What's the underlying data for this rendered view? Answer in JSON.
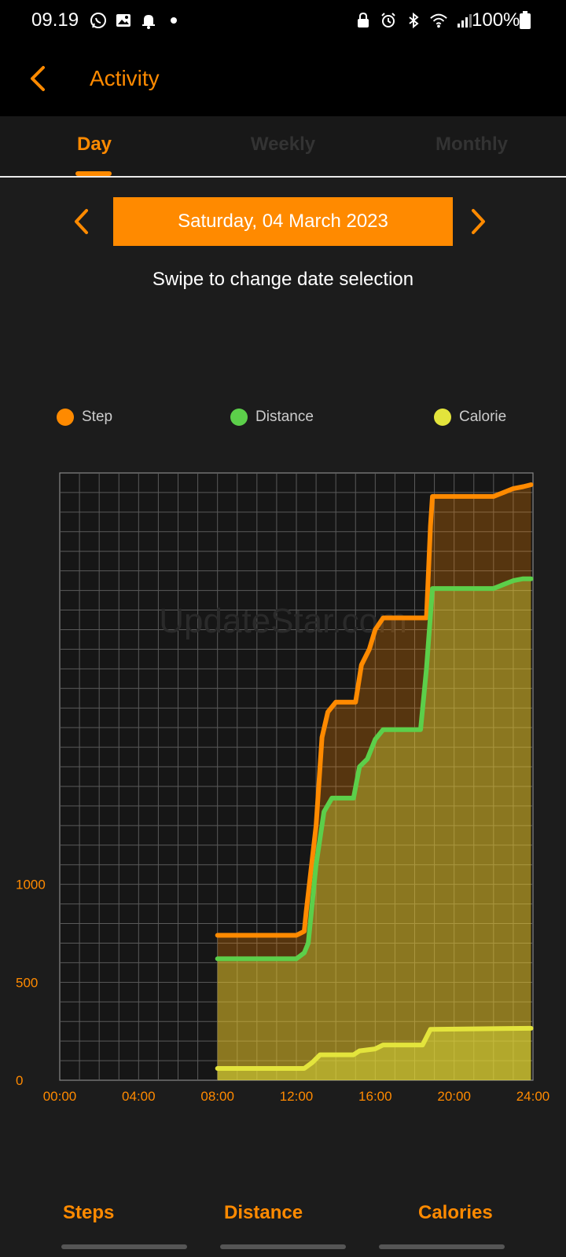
{
  "status_bar": {
    "time": "09.19",
    "battery": "100%",
    "icons_left": [
      "whatsapp-icon",
      "gallery-icon",
      "bell-icon",
      "dot-icon"
    ],
    "icons_right": [
      "lock-icon",
      "alarm-icon",
      "bluetooth-icon",
      "wifi-icon",
      "signal-icon",
      "battery-icon"
    ]
  },
  "app_bar": {
    "title": "Activity"
  },
  "tabs": [
    {
      "label": "Day",
      "selected": true
    },
    {
      "label": "Weekly",
      "selected": false
    },
    {
      "label": "Monthly",
      "selected": false
    }
  ],
  "date_selector": {
    "date": "Saturday, 04 March 2023"
  },
  "swipe_hint": "Swipe to change date selection",
  "colors": {
    "accent": "#ff8a00",
    "step": "#ff8a00",
    "distance": "#5ccf4a",
    "calorie": "#e3e43c"
  },
  "chart_data": {
    "type": "area",
    "x_ticks": [
      "00:00",
      "04:00",
      "08:00",
      "12:00",
      "16:00",
      "20:00",
      "24:00"
    ],
    "y_ticks": [
      0,
      500,
      1000
    ],
    "xlim": [
      0,
      24
    ],
    "ylim": [
      0,
      3100
    ],
    "grid": true,
    "legend_placement": "top",
    "series": [
      {
        "name": "Step",
        "x": [
          8,
          12,
          12.4,
          12.5,
          13.0,
          13.3,
          13.6,
          14.0,
          15.0,
          15.3,
          15.7,
          16.0,
          16.4,
          18.6,
          18.8,
          18.9,
          22.0,
          22.5,
          23.0,
          23.5,
          23.9
        ],
        "y": [
          740,
          740,
          760,
          860,
          1300,
          1750,
          1880,
          1930,
          1930,
          2120,
          2200,
          2300,
          2360,
          2360,
          2830,
          2980,
          2980,
          3000,
          3020,
          3030,
          3040
        ]
      },
      {
        "name": "Distance",
        "x": [
          8,
          12,
          12.4,
          12.6,
          13.0,
          13.4,
          13.8,
          14.9,
          15.2,
          15.6,
          16.0,
          16.4,
          18.3,
          18.6,
          18.9,
          22.0,
          22.5,
          23.0,
          23.5,
          23.9
        ],
        "y": [
          620,
          620,
          650,
          700,
          1100,
          1370,
          1440,
          1440,
          1600,
          1640,
          1740,
          1790,
          1790,
          2100,
          2510,
          2510,
          2530,
          2550,
          2560,
          2560
        ]
      },
      {
        "name": "Calorie",
        "x": [
          8,
          12.4,
          12.8,
          13.2,
          14.9,
          15.2,
          16.0,
          16.4,
          18.4,
          18.8,
          23.9
        ],
        "y": [
          60,
          60,
          90,
          130,
          130,
          150,
          160,
          180,
          180,
          260,
          265
        ]
      }
    ]
  },
  "watermark": "UpdateStar.com",
  "bottom_labels": [
    "Steps",
    "Distance",
    "Calories"
  ]
}
